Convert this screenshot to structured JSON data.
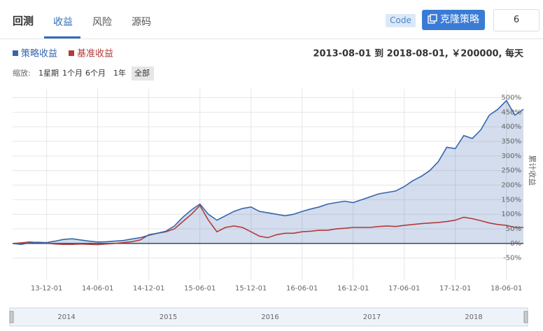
{
  "header": {
    "title": "回测",
    "tabs": [
      "收益",
      "风险",
      "源码"
    ],
    "code_badge": "Code",
    "clone_button": "克隆策略",
    "input_value": "6"
  },
  "summary": "2013-08-01 到 2018-08-01, ￥200000, 每天",
  "zoom": {
    "label": "缩放:",
    "options": [
      "1星期",
      "1个月",
      "6个月",
      "1年",
      "全部"
    ]
  },
  "navigator": {
    "years": [
      "2014",
      "2015",
      "2016",
      "2017",
      "2018"
    ]
  },
  "chart_data": {
    "type": "line",
    "y_axis_label": "累计收益",
    "grid": true,
    "legend": "top-left",
    "area": true,
    "x": [
      "2013-08-01",
      "2013-09-01",
      "2013-10-01",
      "2013-11-01",
      "2013-12-01",
      "2014-01-01",
      "2014-02-01",
      "2014-03-01",
      "2014-04-01",
      "2014-05-01",
      "2014-06-01",
      "2014-07-01",
      "2014-08-01",
      "2014-09-01",
      "2014-10-01",
      "2014-11-01",
      "2014-12-01",
      "2015-01-01",
      "2015-02-01",
      "2015-03-01",
      "2015-04-01",
      "2015-05-01",
      "2015-06-01",
      "2015-07-01",
      "2015-08-01",
      "2015-09-01",
      "2015-10-01",
      "2015-11-01",
      "2015-12-01",
      "2016-01-01",
      "2016-02-01",
      "2016-03-01",
      "2016-04-01",
      "2016-05-01",
      "2016-06-01",
      "2016-07-01",
      "2016-08-01",
      "2016-09-01",
      "2016-10-01",
      "2016-11-01",
      "2016-12-01",
      "2017-01-01",
      "2017-02-01",
      "2017-03-01",
      "2017-04-01",
      "2017-05-01",
      "2017-06-01",
      "2017-07-01",
      "2017-08-01",
      "2017-09-01",
      "2017-10-01",
      "2017-11-01",
      "2017-12-01",
      "2018-01-01",
      "2018-02-01",
      "2018-03-01",
      "2018-04-01",
      "2018-05-01",
      "2018-06-01",
      "2018-07-01",
      "2018-08-01"
    ],
    "series": [
      {
        "name": "策略收益",
        "color": "#3566ad",
        "values": [
          0,
          -3,
          2,
          4,
          3,
          8,
          14,
          16,
          12,
          8,
          5,
          6,
          8,
          10,
          15,
          20,
          28,
          35,
          42,
          60,
          90,
          115,
          135,
          100,
          80,
          95,
          110,
          120,
          125,
          110,
          105,
          100,
          95,
          100,
          110,
          118,
          125,
          135,
          140,
          145,
          140,
          150,
          160,
          170,
          175,
          180,
          195,
          215,
          230,
          250,
          280,
          330,
          325,
          370,
          360,
          390,
          440,
          460,
          490,
          440,
          460
        ]
      },
      {
        "name": "基准收益",
        "color": "#b23b3b",
        "values": [
          0,
          2,
          5,
          3,
          1,
          -2,
          -3,
          -3,
          -2,
          -3,
          -4,
          -2,
          0,
          3,
          6,
          12,
          30,
          35,
          40,
          50,
          75,
          100,
          130,
          80,
          40,
          55,
          60,
          55,
          40,
          25,
          20,
          30,
          35,
          35,
          40,
          42,
          45,
          45,
          50,
          52,
          55,
          55,
          55,
          58,
          60,
          58,
          62,
          65,
          68,
          70,
          72,
          75,
          80,
          90,
          85,
          78,
          70,
          65,
          62,
          55,
          55
        ]
      }
    ],
    "xlim": [
      "2013-08-01",
      "2018-08-01"
    ],
    "xticks": [
      {
        "value": "2013-12-01",
        "label": "13-12-01"
      },
      {
        "value": "2014-06-01",
        "label": "14-06-01"
      },
      {
        "value": "2014-12-01",
        "label": "14-12-01"
      },
      {
        "value": "2015-06-01",
        "label": "15-06-01"
      },
      {
        "value": "2015-12-01",
        "label": "15-12-01"
      },
      {
        "value": "2016-06-01",
        "label": "16-06-01"
      },
      {
        "value": "2016-12-01",
        "label": "16-12-01"
      },
      {
        "value": "2017-06-01",
        "label": "17-06-01"
      },
      {
        "value": "2017-12-01",
        "label": "17-12-01"
      },
      {
        "value": "2018-06-01",
        "label": "18-06-01"
      }
    ],
    "ylim": [
      -125,
      530
    ],
    "yticks": [
      {
        "value": 500,
        "label": "500%"
      },
      {
        "value": 450,
        "label": "450%"
      },
      {
        "value": 400,
        "label": "400%"
      },
      {
        "value": 350,
        "label": "350%"
      },
      {
        "value": 300,
        "label": "300%"
      },
      {
        "value": 250,
        "label": "250%"
      },
      {
        "value": 200,
        "label": "200%"
      },
      {
        "value": 150,
        "label": "150%"
      },
      {
        "value": 100,
        "label": "100%"
      },
      {
        "value": 50,
        "label": "50%"
      },
      {
        "value": 0,
        "label": "0%"
      },
      {
        "value": -50,
        "label": "-50%"
      }
    ]
  }
}
